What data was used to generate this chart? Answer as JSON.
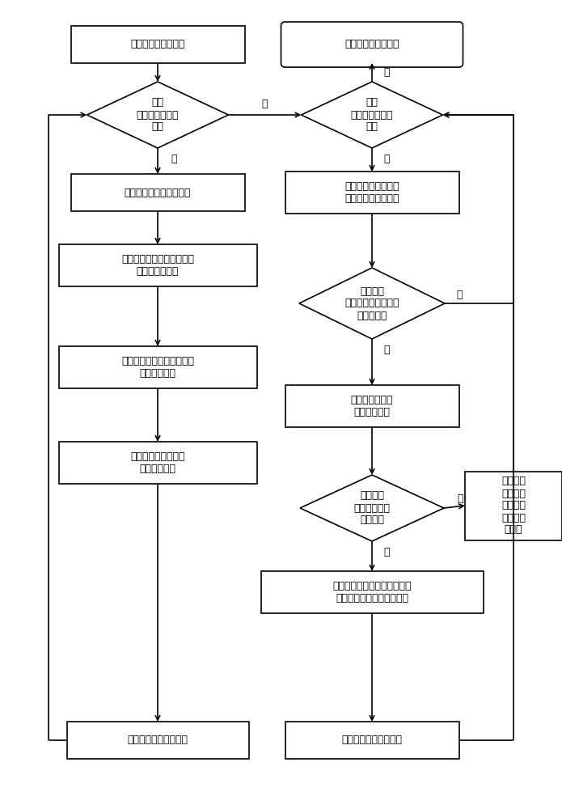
{
  "bg_color": "#ffffff",
  "line_color": "#000000",
  "text_color": "#000000",
  "font_size": 9,
  "lw": 1.2,
  "nodes": {
    "start_left": {
      "text": "单遥测需求对象集合"
    },
    "end_right": {
      "text": "结束单遥测资源调度"
    },
    "diamond1": {
      "text": "判断\n需求对象是否遍\n历完"
    },
    "diamond2": {
      "text": "判断\n需求对象是否处\n理完"
    },
    "box_load1": {
      "text": "载入一个单遥测需求对象"
    },
    "box_load2": {
      "text": "载入优先级最高的需\n求对象的可行解空间"
    },
    "box_dev": {
      "text": "将需求对象期望设备列表载\n入可用设备列表"
    },
    "diamond3": {
      "text": "判断该可\n行解空间的可用可行\n解是否为零"
    },
    "box_vis": {
      "text": "基于时间窗口取可用设备的\n可见预报数据"
    },
    "box_sol": {
      "text": "载入设备期望值\n最高的可行解"
    },
    "box_build": {
      "text": "构建满足该需求对象\n的可行解空间"
    },
    "diamond4": {
      "text": "判断该可\n行解是否满足\n需求约束"
    },
    "box_remove": {
      "text": "将该可行\n解从当前\n需求对象\n可行解空\n间删除"
    },
    "box_calc": {
      "text": "计算当前需求对象在该可行解\n分配后的剩余需求时间窗口"
    },
    "box_build_s": {
      "text": "构建单遥测可行解空间"
    },
    "box_update": {
      "text": "更新单遥测可行解空间"
    }
  },
  "yes": "是",
  "no": "否"
}
